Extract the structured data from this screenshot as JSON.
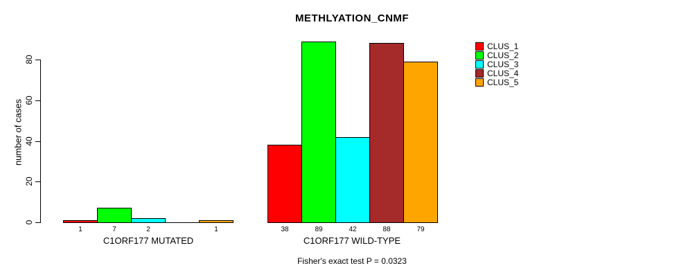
{
  "chart_data": {
    "type": "bar",
    "title": "METHLYATION_CNMF",
    "ylabel": "number of cases",
    "xlabel": "",
    "yticks": [
      0,
      20,
      40,
      60,
      80
    ],
    "ylim": [
      0,
      89
    ],
    "grid": false,
    "legend_position": "right",
    "series_names": [
      "CLUS_1",
      "CLUS_2",
      "CLUS_3",
      "CLUS_4",
      "CLUS_5"
    ],
    "series_colors": [
      "#ff0000",
      "#00ff00",
      "#00ffff",
      "#a52a2a",
      "#ffa500"
    ],
    "groups": [
      {
        "label": "C1ORF177 MUTATED",
        "values": [
          1,
          7,
          2,
          0,
          1
        ],
        "value_labels": [
          "1",
          "7",
          "2",
          "",
          "1"
        ]
      },
      {
        "label": "C1ORF177 WILD-TYPE",
        "values": [
          38,
          89,
          42,
          88,
          79
        ],
        "value_labels": [
          "38",
          "89",
          "42",
          "88",
          "79"
        ]
      }
    ],
    "annotation": "Fisher's exact test P = 0.0323"
  }
}
